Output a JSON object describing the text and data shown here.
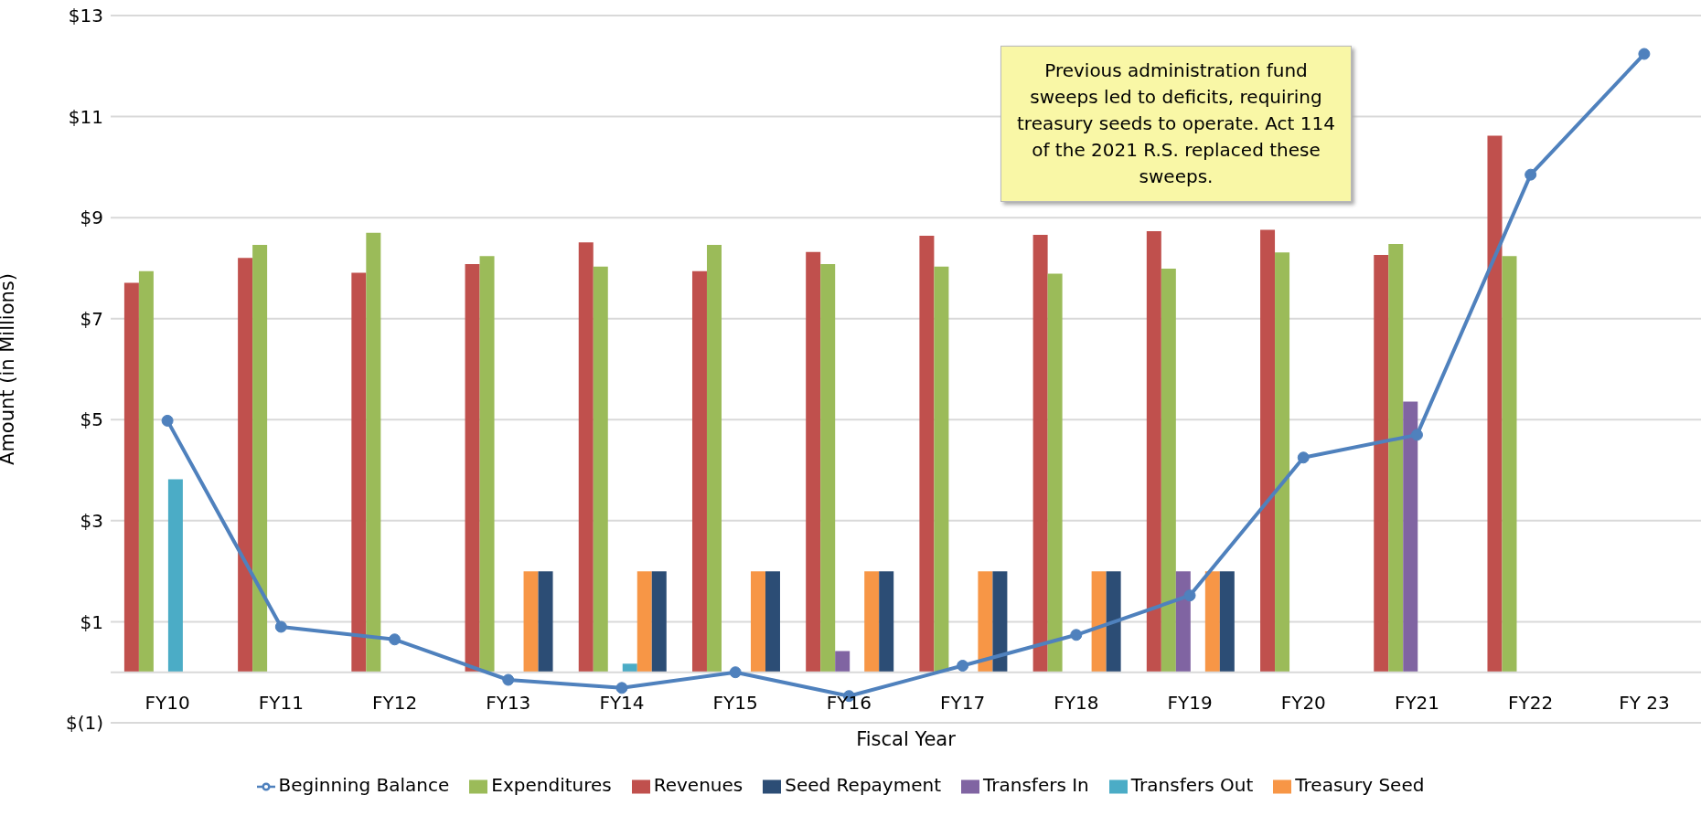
{
  "chart_data": {
    "type": "bar",
    "xlabel": "Fiscal Year",
    "ylabel": "Amount (in Millions)",
    "categories": [
      "FY10",
      "FY11",
      "FY12",
      "FY13",
      "FY14",
      "FY15",
      "FY16",
      "FY17",
      "FY18",
      "FY19",
      "FY20",
      "FY21",
      "FY22",
      "FY 23"
    ],
    "series": [
      {
        "name": "Revenues",
        "color": "#c0504d",
        "values": [
          7.71,
          8.2,
          7.91,
          8.08,
          8.51,
          7.94,
          8.32,
          8.64,
          8.66,
          8.73,
          8.76,
          8.26,
          10.62,
          null
        ]
      },
      {
        "name": "Expenditures",
        "color": "#9bbb59",
        "values": [
          7.94,
          8.46,
          8.7,
          8.24,
          8.03,
          8.46,
          8.08,
          8.03,
          7.89,
          7.99,
          8.31,
          8.48,
          8.24,
          null
        ]
      },
      {
        "name": "Transfers In",
        "color": "#8064a2",
        "values": [
          null,
          null,
          null,
          null,
          null,
          null,
          0.42,
          null,
          null,
          2,
          null,
          5.36,
          null,
          null
        ]
      },
      {
        "name": "Transfers Out",
        "color": "#4bacc6",
        "values": [
          3.82,
          null,
          null,
          null,
          0.17,
          null,
          null,
          null,
          null,
          null,
          null,
          null,
          null,
          null
        ]
      },
      {
        "name": "Treasury Seed",
        "color": "#f79646",
        "values": [
          null,
          null,
          null,
          2,
          2,
          2,
          2,
          2,
          2,
          2,
          null,
          null,
          null,
          null
        ]
      },
      {
        "name": "Seed Repayment",
        "color": "#2c4d75",
        "values": [
          null,
          null,
          null,
          2,
          2,
          2,
          2,
          2,
          2,
          2,
          null,
          null,
          null,
          null
        ]
      },
      {
        "name": "Beginning Balance",
        "type": "line",
        "color": "#4f81bd",
        "marker": "circle",
        "line_style": "solid",
        "values": [
          4.98,
          0.9,
          0.65,
          -0.15,
          -0.31,
          0,
          -0.47,
          0.13,
          0.74,
          1.52,
          4.25,
          4.7,
          9.85,
          12.24
        ]
      }
    ],
    "ylim": [
      -1,
      13
    ],
    "yticks": [
      {
        "value": -1,
        "label": "$(1)"
      },
      {
        "value": 1,
        "label": "$1"
      },
      {
        "value": 3,
        "label": "$3"
      },
      {
        "value": 5,
        "label": "$5"
      },
      {
        "value": 7,
        "label": "$7"
      },
      {
        "value": 9,
        "label": "$9"
      },
      {
        "value": 11,
        "label": "$11"
      },
      {
        "value": 13,
        "label": "$13"
      }
    ],
    "grid": "y",
    "legend": "bottom",
    "annotations": [
      "Previous administration fund sweeps led to deficits, requiring treasury seeds to operate. Act 114 of the 2021 R.S. replaced these sweeps."
    ]
  }
}
